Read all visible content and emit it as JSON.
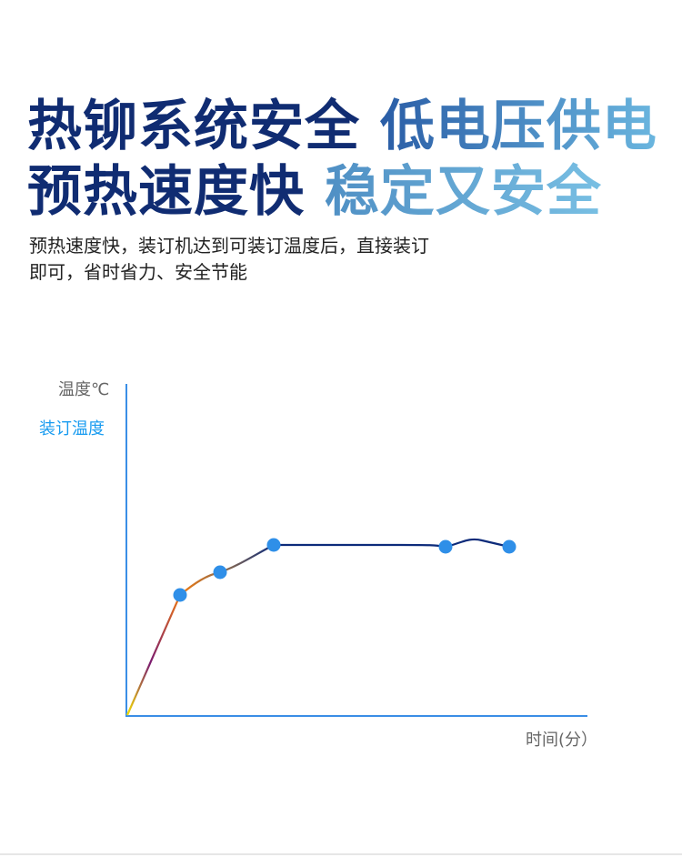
{
  "headline": {
    "line1_dark": "热铆系统安全",
    "line1_light": "低电压供电",
    "line2_dark": "预热速度快",
    "line2_light": "稳定又安全"
  },
  "description": {
    "line1": "预热速度快，装订机达到可装订温度后，直接装订",
    "line2": "即可，省时省力、安全节能"
  },
  "chart_data": {
    "type": "line",
    "ylabel": "温度℃",
    "xlabel": "时间(分）",
    "annotation": "装订温度",
    "grid": false,
    "colors": {
      "axis": "#3a8ee6",
      "marker": "#2f8fe8",
      "line_start": "#f5e000",
      "line_mid": "#f07a10",
      "line_end": "#0d2b7a"
    }
  }
}
